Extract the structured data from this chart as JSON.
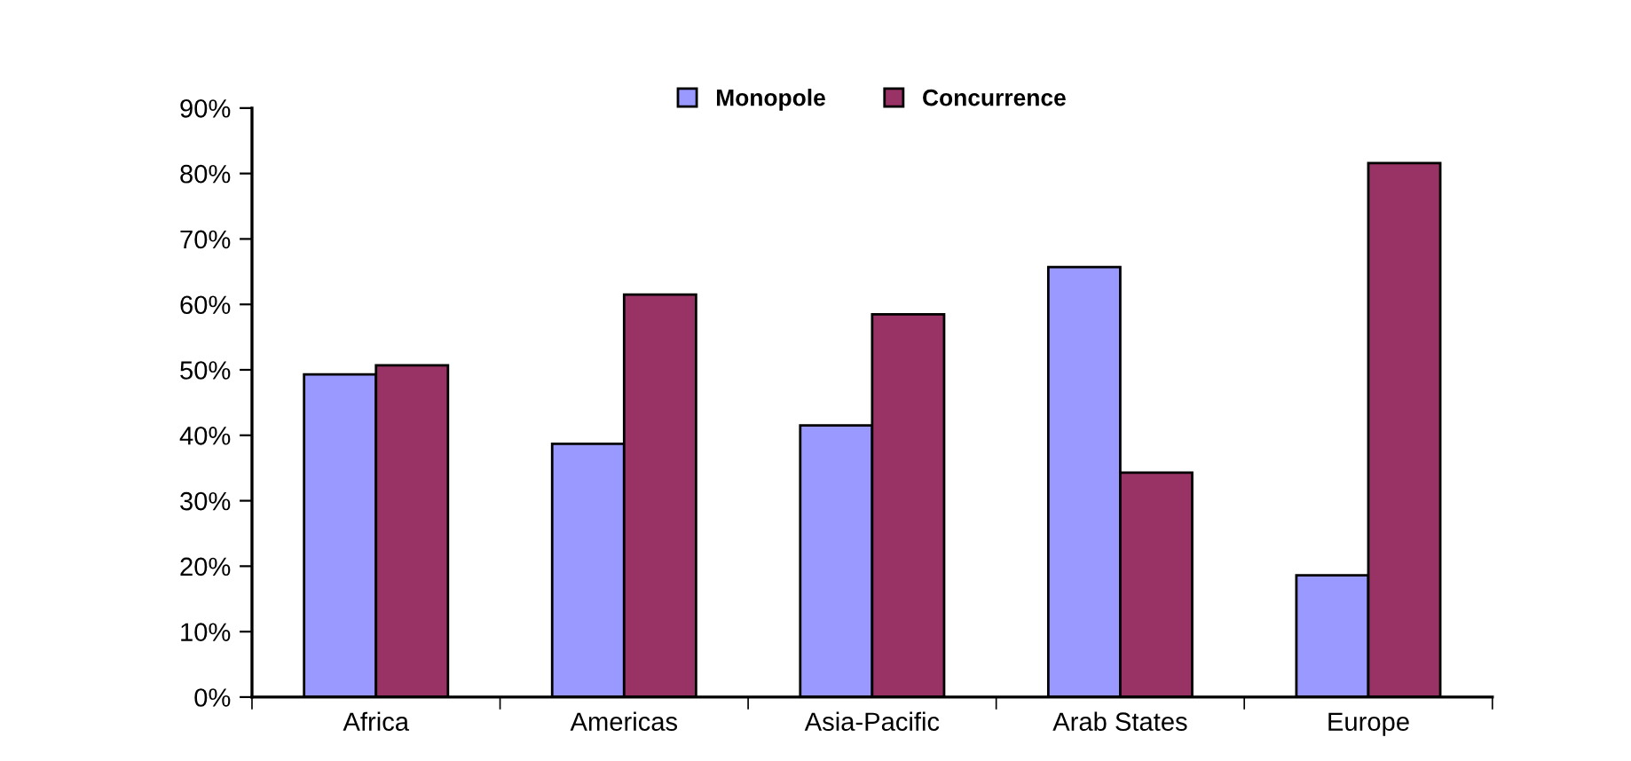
{
  "chart_data": {
    "type": "bar",
    "categories": [
      "Africa",
      "Americas",
      "Asia-Pacific",
      "Arab States",
      "Europe"
    ],
    "series": [
      {
        "name": "Monopole",
        "color": "#9999ff",
        "values": [
          49.3,
          38.7,
          41.5,
          65.7,
          18.6
        ]
      },
      {
        "name": "Concurrence",
        "color": "#993366",
        "values": [
          50.7,
          61.5,
          58.5,
          34.3,
          81.6
        ]
      }
    ],
    "ylim": [
      0,
      90
    ],
    "yticks": [
      {
        "value": 0,
        "label": "0%"
      },
      {
        "value": 10,
        "label": "10%"
      },
      {
        "value": 20,
        "label": "20%"
      },
      {
        "value": 30,
        "label": "30%"
      },
      {
        "value": 40,
        "label": "40%"
      },
      {
        "value": 50,
        "label": "50%"
      },
      {
        "value": 60,
        "label": "60%"
      },
      {
        "value": 70,
        "label": "70%"
      },
      {
        "value": 80,
        "label": "80%"
      },
      {
        "value": 90,
        "label": "90%"
      }
    ],
    "grid": false,
    "legend": "top"
  }
}
